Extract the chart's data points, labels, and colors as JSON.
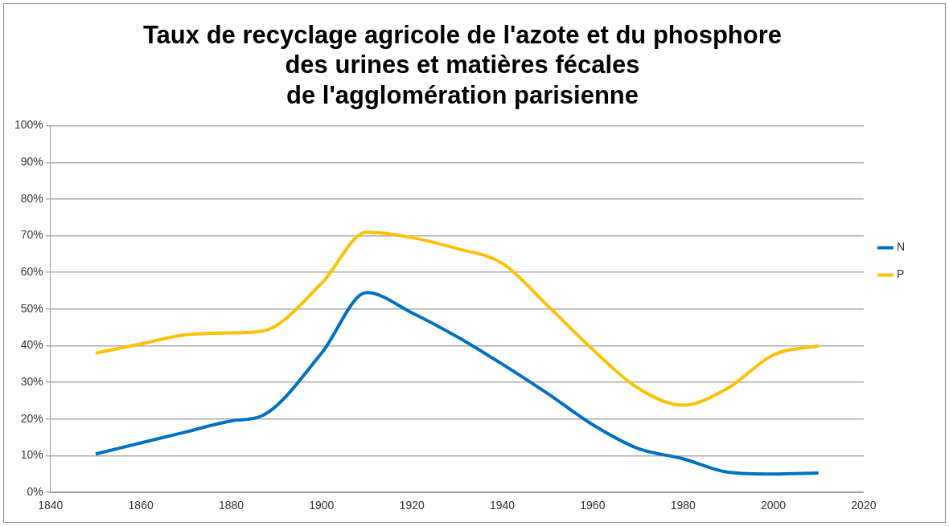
{
  "chart_data": {
    "type": "line",
    "title": "Taux de recyclage agricole de l'azote et du phosphore\ndes urines et matières fécales\nde l'agglomération parisienne",
    "x": [
      1850,
      1860,
      1870,
      1880,
      1887,
      1900,
      1910,
      1920,
      1930,
      1940,
      1950,
      1960,
      1970,
      1980,
      1990,
      2000,
      2010
    ],
    "series": [
      {
        "name": "N",
        "color": "#0070c0",
        "values": [
          10.5,
          13.5,
          16.5,
          19.5,
          21,
          38,
          54.5,
          49,
          42.5,
          35,
          27,
          18.5,
          12,
          9.2,
          5.5,
          5,
          5.3
        ]
      },
      {
        "name": "P",
        "color": "#ffc000",
        "values": [
          38,
          40.5,
          43,
          43.5,
          44,
          57,
          71,
          69.5,
          66.5,
          62.5,
          51,
          39,
          28.5,
          23.8,
          28.5,
          37.5,
          40
        ]
      }
    ],
    "xlim": [
      1840,
      2020
    ],
    "xticks": [
      1840,
      1860,
      1880,
      1900,
      1920,
      1940,
      1960,
      1980,
      2000,
      2020
    ],
    "ylim": [
      0,
      100
    ],
    "yticks": [
      {
        "value": 0,
        "label": "0%"
      },
      {
        "value": 10,
        "label": "10%"
      },
      {
        "value": 20,
        "label": "20%"
      },
      {
        "value": 30,
        "label": "30%"
      },
      {
        "value": 40,
        "label": "40%"
      },
      {
        "value": 50,
        "label": "50%"
      },
      {
        "value": 60,
        "label": "60%"
      },
      {
        "value": 70,
        "label": "70%"
      },
      {
        "value": 80,
        "label": "80%"
      },
      {
        "value": 90,
        "label": "90%"
      },
      {
        "value": 100,
        "label": "100%"
      }
    ],
    "grid": "y",
    "legend": "right",
    "marker": "none",
    "line_style": "solid"
  }
}
